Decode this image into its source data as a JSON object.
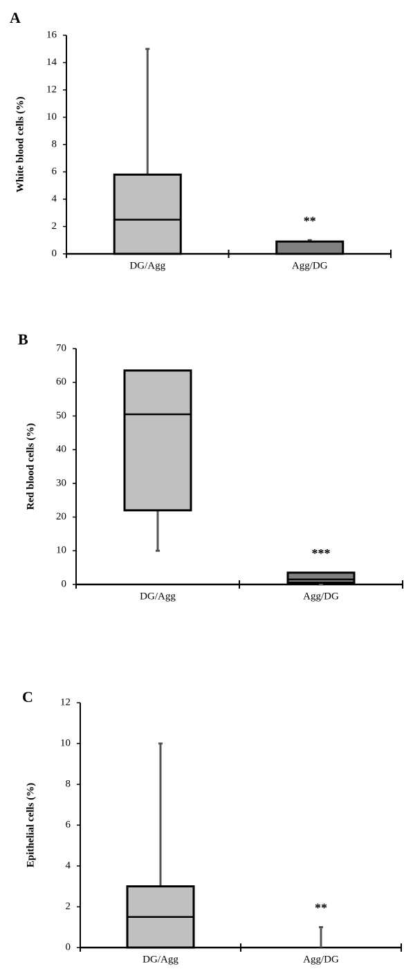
{
  "chart_data": [
    {
      "type": "box",
      "panel_label": "A",
      "ylabel": "White blood cells (%)",
      "categories": [
        "DG/Agg",
        "Agg/DG"
      ],
      "boxes": [
        {
          "min": 0,
          "q1": 0,
          "median": 2.5,
          "q3": 5.8,
          "max": 15,
          "color": "#c0c0c0"
        },
        {
          "min": 0,
          "q1": 0,
          "median": 0,
          "q3": 0.9,
          "max": 1,
          "color": "#808080",
          "annotation": "**"
        }
      ],
      "ylim": [
        0,
        16
      ],
      "yticks": [
        0,
        2,
        4,
        6,
        8,
        10,
        12,
        14,
        16
      ]
    },
    {
      "type": "box",
      "panel_label": "B",
      "ylabel": "Red blood cells (%)",
      "categories": [
        "DG/Agg",
        "Agg/DG"
      ],
      "boxes": [
        {
          "min": 10,
          "q1": 22,
          "median": 50.5,
          "q3": 63.5,
          "max": 63.5,
          "color": "#c0c0c0"
        },
        {
          "min": 0,
          "q1": 0.5,
          "median": 1.5,
          "q3": 3.5,
          "max": 3.5,
          "color": "#808080",
          "annotation": "***"
        }
      ],
      "ylim": [
        0,
        70
      ],
      "yticks": [
        0,
        10,
        20,
        30,
        40,
        50,
        60,
        70
      ]
    },
    {
      "type": "box",
      "panel_label": "C",
      "ylabel": "Epithelial cells (%)",
      "categories": [
        "DG/Agg",
        "Agg/DG"
      ],
      "boxes": [
        {
          "min": 0,
          "q1": 0,
          "median": 1.5,
          "q3": 3,
          "max": 10,
          "color": "#c0c0c0"
        },
        {
          "min": 0,
          "q1": 0,
          "median": 0,
          "q3": 0,
          "max": 1,
          "color": "#808080",
          "annotation": "**"
        }
      ],
      "ylim": [
        0,
        12
      ],
      "yticks": [
        0,
        2,
        4,
        6,
        8,
        10,
        12
      ]
    }
  ]
}
